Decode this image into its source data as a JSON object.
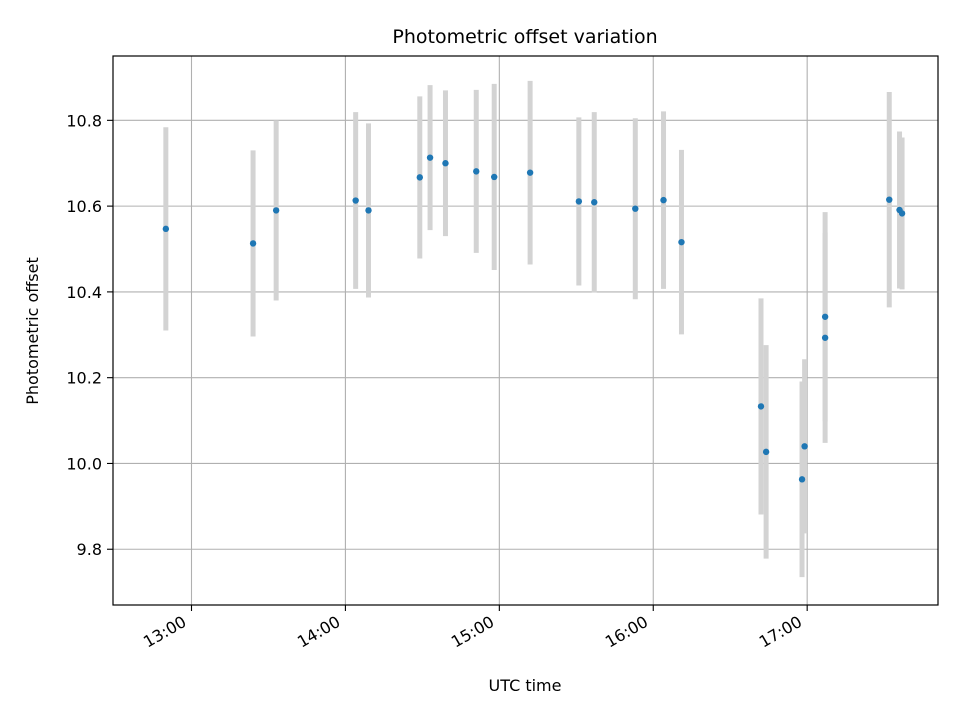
{
  "chart_data": {
    "type": "scatter",
    "title": "Photometric offset variation",
    "xlabel": "UTC time",
    "ylabel": "Photometric offset",
    "x_tick_labels": [
      "13:00",
      "14:00",
      "15:00",
      "16:00",
      "17:00"
    ],
    "x_ticks_hours": [
      13,
      14,
      15,
      16,
      17
    ],
    "xlim_hours": [
      12.49,
      17.85
    ],
    "y_tick_labels": [
      "9.8",
      "10.0",
      "10.2",
      "10.4",
      "10.6",
      "10.8"
    ],
    "y_ticks": [
      9.8,
      10.0,
      10.2,
      10.4,
      10.6,
      10.8
    ],
    "ylim": [
      9.67,
      10.95
    ],
    "grid": true,
    "colors": {
      "marker": "#1f77b4",
      "errorbar": "#d3d3d3",
      "grid": "#b0b0b0",
      "axis": "#000000"
    },
    "series": [
      {
        "points": [
          {
            "x": "12:50",
            "y": 10.547,
            "err": 0.237
          },
          {
            "x": "13:24",
            "y": 10.513,
            "err": 0.217
          },
          {
            "x": "13:33",
            "y": 10.59,
            "err": 0.21
          },
          {
            "x": "14:04",
            "y": 10.613,
            "err": 0.206
          },
          {
            "x": "14:09",
            "y": 10.59,
            "err": 0.203
          },
          {
            "x": "14:29",
            "y": 10.667,
            "err": 0.189
          },
          {
            "x": "14:33",
            "y": 10.713,
            "err": 0.169
          },
          {
            "x": "14:39",
            "y": 10.7,
            "err": 0.17
          },
          {
            "x": "14:51",
            "y": 10.681,
            "err": 0.19
          },
          {
            "x": "14:58",
            "y": 10.668,
            "err": 0.217
          },
          {
            "x": "15:12",
            "y": 10.678,
            "err": 0.214
          },
          {
            "x": "15:31",
            "y": 10.611,
            "err": 0.196
          },
          {
            "x": "15:37",
            "y": 10.609,
            "err": 0.21
          },
          {
            "x": "15:53",
            "y": 10.594,
            "err": 0.211
          },
          {
            "x": "16:04",
            "y": 10.614,
            "err": 0.207
          },
          {
            "x": "16:11",
            "y": 10.516,
            "err": 0.215
          },
          {
            "x": "16:42",
            "y": 10.133,
            "err": 0.252
          },
          {
            "x": "16:44",
            "y": 10.027,
            "err": 0.249
          },
          {
            "x": "16:58",
            "y": 9.963,
            "err": 0.228
          },
          {
            "x": "16:59",
            "y": 10.04,
            "err": 0.203
          },
          {
            "x": "17:07",
            "y": 10.293,
            "err": 0.245
          },
          {
            "x": "17:07",
            "y": 10.342,
            "err": 0.244
          },
          {
            "x": "17:32",
            "y": 10.615,
            "err": 0.251
          },
          {
            "x": "17:36",
            "y": 10.591,
            "err": 0.183
          },
          {
            "x": "17:37",
            "y": 10.583,
            "err": 0.177
          }
        ]
      }
    ]
  }
}
